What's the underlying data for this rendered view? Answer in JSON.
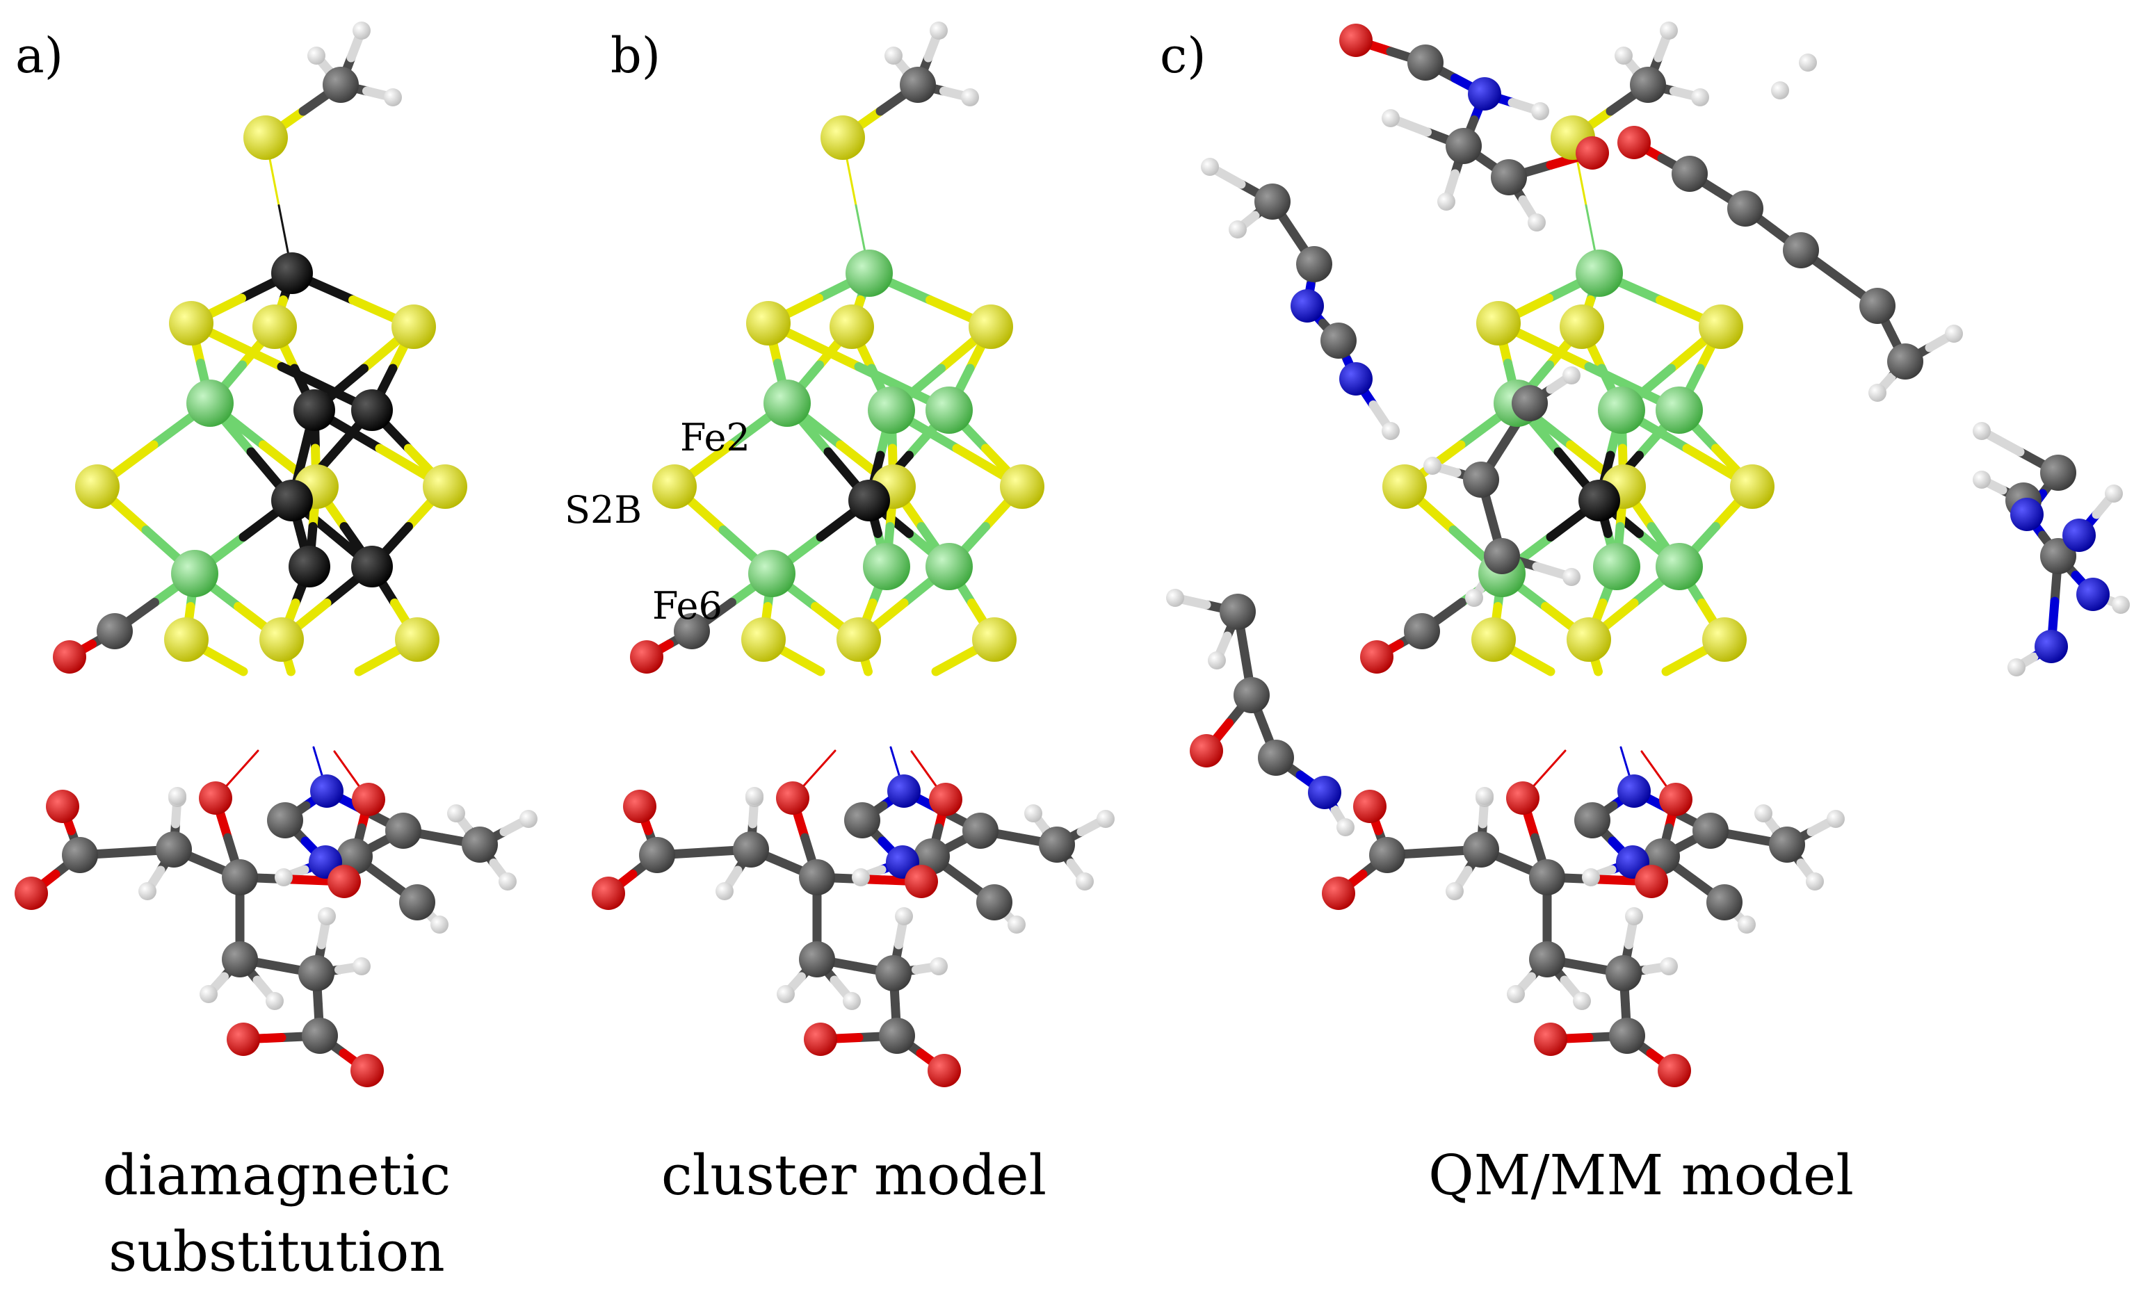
{
  "panels": [
    {
      "id": "a",
      "letter": "a)",
      "caption_lines": [
        "diamagnetic",
        "substitution"
      ],
      "central_atom_color": "#141414",
      "atom_labels": []
    },
    {
      "id": "b",
      "letter": "b)",
      "caption_lines": [
        "cluster model"
      ],
      "central_atom_color": "#8b008b",
      "atom_labels": [
        "Fe2",
        "S2B",
        "Fe6"
      ]
    },
    {
      "id": "c",
      "letter": "c)",
      "caption_lines": [
        "QM/MM model"
      ],
      "central_atom_color": "#8b008b",
      "atom_labels": []
    }
  ],
  "element_colors": {
    "carbon": "#4a4a4a",
    "hydrogen": "#f2f2f2",
    "oxygen": "#e00000",
    "nitrogen": "#0000d8",
    "sulfur": "#e6e600",
    "iron": "#6fd46f",
    "dark_metal": "#141414",
    "molybdenum": "#8b008b"
  }
}
